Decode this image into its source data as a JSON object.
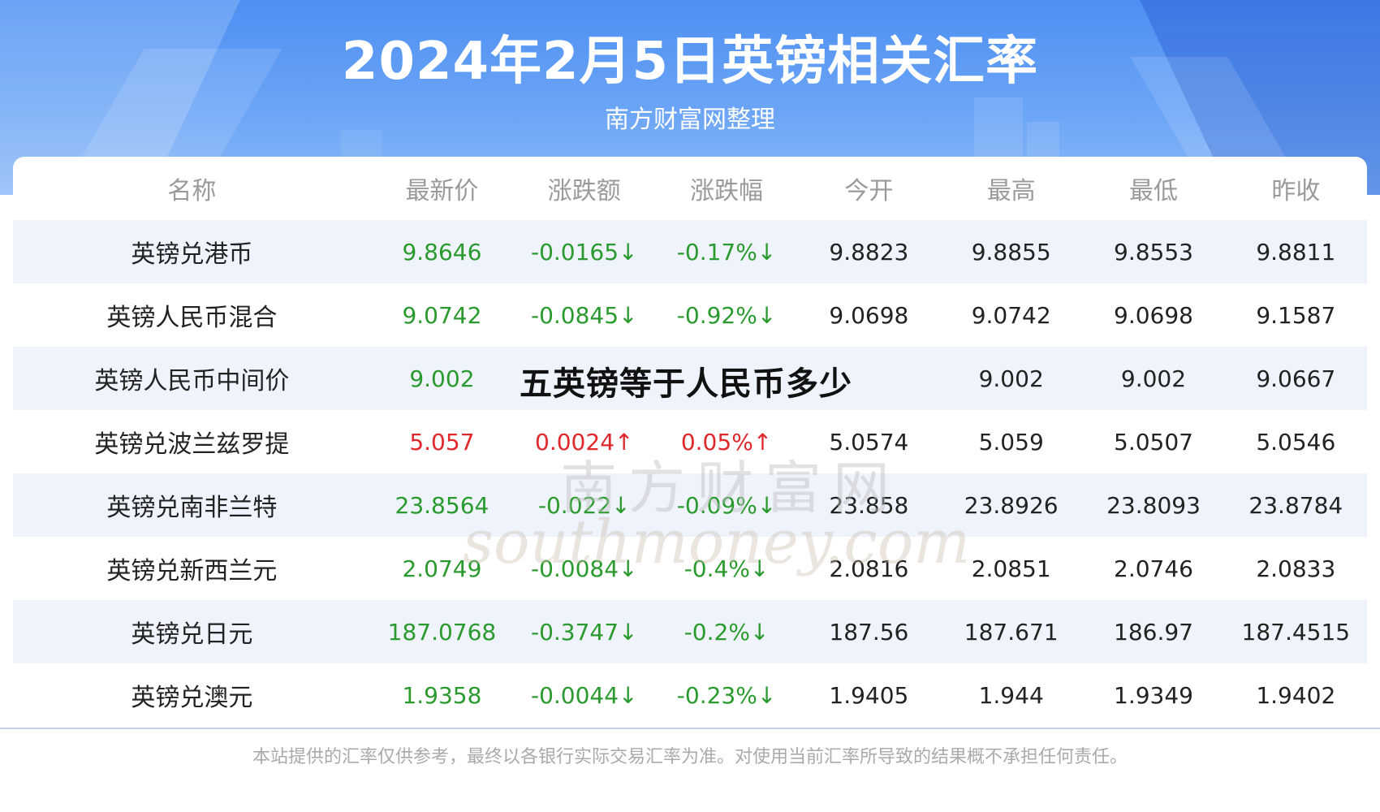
{
  "header": {
    "title": "2024年2月5日英镑相关汇率",
    "subtitle": "南方财富网整理"
  },
  "table": {
    "columns": [
      "名称",
      "最新价",
      "涨跌额",
      "涨跌幅",
      "今开",
      "最高",
      "最低",
      "昨收"
    ],
    "rows": [
      {
        "name": "英镑兑港币",
        "latest": "9.8646",
        "change": "-0.0165↓",
        "pct": "-0.17%↓",
        "open": "9.8823",
        "high": "9.8855",
        "low": "9.8553",
        "prev": "9.8811",
        "dir": "down"
      },
      {
        "name": "英镑人民币混合",
        "latest": "9.0742",
        "change": "-0.0845↓",
        "pct": "-0.92%↓",
        "open": "9.0698",
        "high": "9.0742",
        "low": "9.0698",
        "prev": "9.1587",
        "dir": "down"
      },
      {
        "name": "英镑人民币中间价",
        "latest": "9.002",
        "change": "",
        "pct": "",
        "open": "",
        "high": "9.002",
        "low": "9.002",
        "prev": "9.0667",
        "dir": "down"
      },
      {
        "name": "英镑兑波兰兹罗提",
        "latest": "5.057",
        "change": "0.0024↑",
        "pct": "0.05%↑",
        "open": "5.0574",
        "high": "5.059",
        "low": "5.0507",
        "prev": "5.0546",
        "dir": "up"
      },
      {
        "name": "英镑兑南非兰特",
        "latest": "23.8564",
        "change": "-0.022↓",
        "pct": "-0.09%↓",
        "open": "23.858",
        "high": "23.8926",
        "low": "23.8093",
        "prev": "23.8784",
        "dir": "down"
      },
      {
        "name": "英镑兑新西兰元",
        "latest": "2.0749",
        "change": "-0.0084↓",
        "pct": "-0.4%↓",
        "open": "2.0816",
        "high": "2.0851",
        "low": "2.0746",
        "prev": "2.0833",
        "dir": "down"
      },
      {
        "name": "英镑兑日元",
        "latest": "187.0768",
        "change": "-0.3747↓",
        "pct": "-0.2%↓",
        "open": "187.56",
        "high": "187.671",
        "low": "186.97",
        "prev": "187.4515",
        "dir": "down"
      },
      {
        "name": "英镑兑澳元",
        "latest": "1.9358",
        "change": "-0.0044↓",
        "pct": "-0.23%↓",
        "open": "1.9405",
        "high": "1.944",
        "low": "1.9349",
        "prev": "1.9402",
        "dir": "down"
      }
    ]
  },
  "overlay": {
    "text": "五英镑等于人民币多少"
  },
  "watermark": {
    "cn": "南方财富网",
    "en": "southmoney.com"
  },
  "footer": {
    "disclaimer": "本站提供的汇率仅供参考，最终以各银行实际交易汇率为准。对使用当前汇率所导致的结果概不承担任何责任。"
  },
  "colors": {
    "up": "#e0282c",
    "down": "#2a9a2e",
    "header_blue": "#4d8ff2",
    "row_stripe": "#eef3fc"
  }
}
